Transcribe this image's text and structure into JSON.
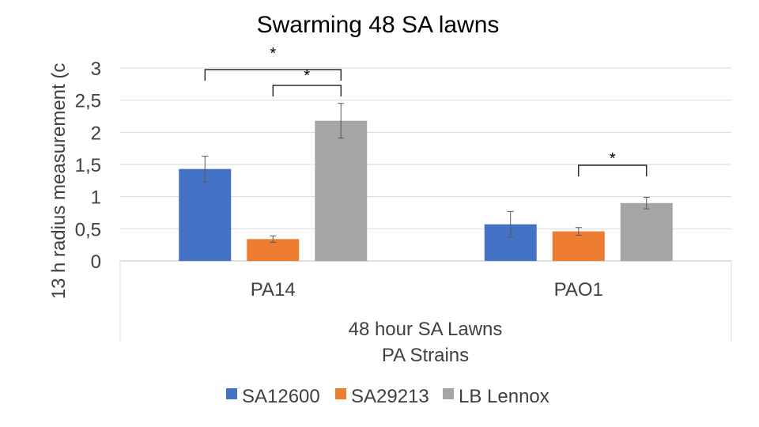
{
  "chart_data": {
    "type": "bar",
    "title": "Swarming 48 SA lawns",
    "ylabel": "13 h radius measurement (c",
    "xlabel_lines": [
      "48 hour SA Lawns",
      "PA Strains"
    ],
    "categories": [
      "PA14",
      "PAO1"
    ],
    "ylim": [
      0,
      3
    ],
    "yticks": [
      "0",
      "0,5",
      "1",
      "1,5",
      "2",
      "2,5",
      "3"
    ],
    "ytick_values": [
      0,
      0.5,
      1,
      1.5,
      2,
      2.5,
      3
    ],
    "grid": true,
    "legend_position": "bottom",
    "series": [
      {
        "name": "SA12600",
        "color": "#4472C4",
        "values": [
          1.43,
          0.57
        ],
        "errors": [
          0.2,
          0.2
        ]
      },
      {
        "name": "SA29213",
        "color": "#ED7D31",
        "values": [
          0.34,
          0.46
        ],
        "errors": [
          0.05,
          0.06
        ]
      },
      {
        "name": "LB Lennox",
        "color": "#A5A5A5",
        "values": [
          2.18,
          0.9
        ],
        "errors": [
          0.27,
          0.09
        ]
      }
    ],
    "significance": [
      {
        "label": "*",
        "category": 0,
        "from_series": 0,
        "to_series": 2
      },
      {
        "label": "*",
        "category": 0,
        "from_series": 1,
        "to_series": 2
      },
      {
        "label": "*",
        "category": 1,
        "from_series": 1,
        "to_series": 2
      }
    ]
  }
}
